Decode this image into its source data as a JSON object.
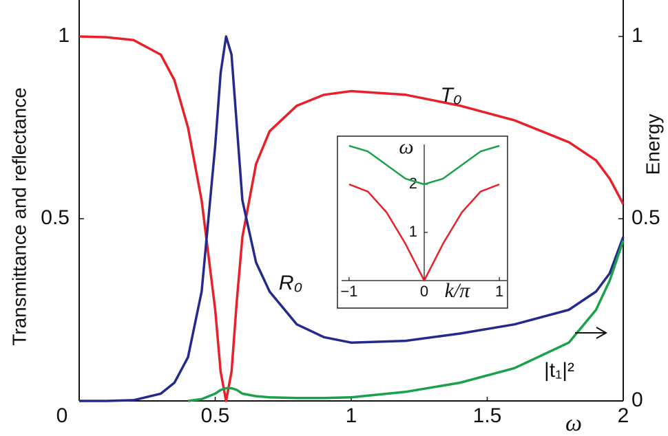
{
  "chart_data": [
    {
      "type": "line",
      "x_label": "ω",
      "y_label": "Transmittance and reflectance",
      "y2_label": "Energy",
      "x": [
        0,
        0.1,
        0.2,
        0.3,
        0.35,
        0.4,
        0.45,
        0.5,
        0.52,
        0.54,
        0.56,
        0.58,
        0.6,
        0.65,
        0.7,
        0.8,
        0.9,
        1.0,
        1.2,
        1.4,
        1.6,
        1.8,
        1.9,
        1.95,
        2.0
      ],
      "series": [
        {
          "name": "T₀",
          "color": "#e8202a",
          "values": [
            1.0,
            0.998,
            0.99,
            0.95,
            0.88,
            0.75,
            0.55,
            0.25,
            0.08,
            0.0,
            0.08,
            0.28,
            0.45,
            0.65,
            0.74,
            0.81,
            0.84,
            0.85,
            0.84,
            0.81,
            0.77,
            0.71,
            0.66,
            0.61,
            0.54
          ]
        },
        {
          "name": "R₀",
          "color": "#242a8c",
          "values": [
            0.0,
            0.0,
            0.002,
            0.02,
            0.05,
            0.12,
            0.3,
            0.7,
            0.9,
            1.0,
            0.95,
            0.75,
            0.55,
            0.38,
            0.3,
            0.21,
            0.175,
            0.16,
            0.165,
            0.185,
            0.21,
            0.25,
            0.3,
            0.35,
            0.45
          ]
        },
        {
          "name": "|t₁|²",
          "color": "#1aa24a",
          "axis": "y2",
          "values": [
            null,
            null,
            null,
            null,
            null,
            0.0,
            0.005,
            0.02,
            0.03,
            0.035,
            0.035,
            0.03,
            0.02,
            0.013,
            0.01,
            0.008,
            0.008,
            0.01,
            0.025,
            0.05,
            0.09,
            0.16,
            0.25,
            0.33,
            0.44
          ]
        }
      ],
      "xlim": [
        0,
        2
      ],
      "xticks": [
        0,
        0.5,
        1,
        1.5,
        2
      ],
      "ylim": [
        0,
        1.1
      ],
      "yticks": [
        0.5,
        1
      ],
      "y2lim": [
        0,
        1.1
      ],
      "y2ticks": [
        0,
        0.5,
        1
      ]
    },
    {
      "type": "line",
      "x_label": "k/π",
      "y_label": "ω",
      "x": [
        -1,
        -0.75,
        -0.5,
        -0.25,
        0,
        0.25,
        0.5,
        0.75,
        1
      ],
      "series": [
        {
          "color": "#1aa24a",
          "values": [
            2.8,
            2.683,
            2.4,
            2.117,
            2.0,
            2.117,
            2.4,
            2.683,
            2.8
          ]
        },
        {
          "color": "#e8202a",
          "values": [
            2.0,
            1.848,
            1.414,
            0.765,
            0.0,
            0.765,
            1.414,
            1.848,
            2.0
          ]
        }
      ],
      "xlim": [
        -1.1,
        1.1
      ],
      "xticks": [
        {
          "value": -1,
          "label": "−1"
        },
        0,
        1
      ],
      "ylim": [
        0,
        3
      ],
      "yticks": [
        1,
        2
      ]
    }
  ]
}
